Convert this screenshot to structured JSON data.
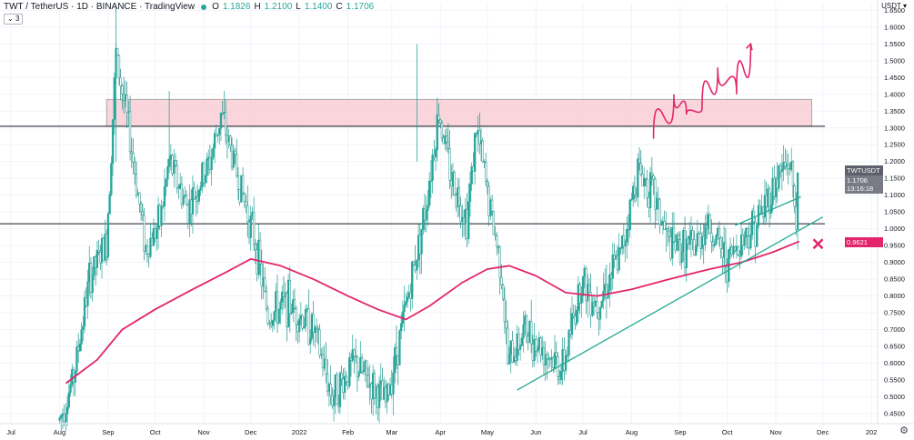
{
  "header": {
    "title": "TWT / TetherUS · 1D · BINANCE · TradingView",
    "o_label": "O",
    "o": "1.1826",
    "h_label": "H",
    "h": "1.2100",
    "l_label": "L",
    "l": "1.1400",
    "c_label": "C",
    "c": "1.1706",
    "indicator_count": "3",
    "currency": "USDT ▾"
  },
  "price_tags": {
    "symbol": "TWTUSDT",
    "last": "1.1706",
    "countdown": "13:16:18",
    "ma_value": "0.9621"
  },
  "colors": {
    "up": "#26a69a",
    "ma": "#e3256b",
    "trendline": "#22ab94",
    "zone_fill": "#f8c8d0",
    "arrow": "#e3256b",
    "hline": "#131722"
  },
  "chart_data": {
    "type": "candlestick",
    "symbol": "TWTUSDT",
    "interval": "1D",
    "exchange": "BINANCE",
    "y_ticks": [
      "1.6500",
      "1.6000",
      "1.5500",
      "1.5000",
      "1.4500",
      "1.4000",
      "1.3500",
      "1.3000",
      "1.2500",
      "1.2000",
      "1.1500",
      "1.1000",
      "1.0500",
      "1.0000",
      "0.9500",
      "0.9000",
      "0.8500",
      "0.8000",
      "0.7500",
      "0.7000",
      "0.6500",
      "0.6000",
      "0.5500",
      "0.5000",
      "0.4500"
    ],
    "ylim": [
      0.42,
      1.67
    ],
    "x_ticks": [
      "Jul",
      "Aug",
      "Sep",
      "Oct",
      "Nov",
      "Dec",
      "2022",
      "Feb",
      "Mar",
      "Apr",
      "May",
      "Jun",
      "Jul",
      "Aug",
      "Sep",
      "Oct",
      "Nov",
      "Dec",
      "202"
    ],
    "xlim": [
      "2021-06-24",
      "2023-01-05"
    ],
    "close_path": [
      {
        "date": "2021-08-01",
        "close": 0.43
      },
      {
        "date": "2021-08-10",
        "close": 0.56
      },
      {
        "date": "2021-08-20",
        "close": 0.85
      },
      {
        "date": "2021-08-31",
        "close": 0.96
      },
      {
        "date": "2021-09-06",
        "close": 1.52
      },
      {
        "date": "2021-09-15",
        "close": 1.27
      },
      {
        "date": "2021-09-25",
        "close": 0.94
      },
      {
        "date": "2021-10-04",
        "close": 1.02
      },
      {
        "date": "2021-10-10",
        "close": 1.2
      },
      {
        "date": "2021-10-22",
        "close": 1.06
      },
      {
        "date": "2021-11-05",
        "close": 1.2
      },
      {
        "date": "2021-11-12",
        "close": 1.34
      },
      {
        "date": "2021-11-26",
        "close": 1.1
      },
      {
        "date": "2021-12-04",
        "close": 0.96
      },
      {
        "date": "2021-12-12",
        "close": 0.74
      },
      {
        "date": "2021-12-25",
        "close": 0.78
      },
      {
        "date": "2022-01-10",
        "close": 0.7
      },
      {
        "date": "2022-01-22",
        "close": 0.5
      },
      {
        "date": "2022-02-05",
        "close": 0.6
      },
      {
        "date": "2022-02-25",
        "close": 0.48
      },
      {
        "date": "2022-03-08",
        "close": 0.72
      },
      {
        "date": "2022-03-22",
        "close": 1.05
      },
      {
        "date": "2022-03-31",
        "close": 1.35
      },
      {
        "date": "2022-04-08",
        "close": 1.15
      },
      {
        "date": "2022-04-18",
        "close": 1.03
      },
      {
        "date": "2022-04-24",
        "close": 1.3
      },
      {
        "date": "2022-05-03",
        "close": 1.05
      },
      {
        "date": "2022-05-10",
        "close": 0.88
      },
      {
        "date": "2022-05-14",
        "close": 0.6
      },
      {
        "date": "2022-05-25",
        "close": 0.7
      },
      {
        "date": "2022-06-10",
        "close": 0.62
      },
      {
        "date": "2022-06-18",
        "close": 0.58
      },
      {
        "date": "2022-06-30",
        "close": 0.85
      },
      {
        "date": "2022-07-10",
        "close": 0.78
      },
      {
        "date": "2022-07-25",
        "close": 0.92
      },
      {
        "date": "2022-08-05",
        "close": 1.18
      },
      {
        "date": "2022-08-15",
        "close": 1.1
      },
      {
        "date": "2022-08-25",
        "close": 0.95
      },
      {
        "date": "2022-09-10",
        "close": 0.94
      },
      {
        "date": "2022-09-18",
        "close": 1.02
      },
      {
        "date": "2022-10-01",
        "close": 0.9
      },
      {
        "date": "2022-10-10",
        "close": 0.97
      },
      {
        "date": "2022-10-20",
        "close": 1.02
      },
      {
        "date": "2022-10-28",
        "close": 1.1
      },
      {
        "date": "2022-11-03",
        "close": 1.16
      },
      {
        "date": "2022-11-10",
        "close": 1.2
      },
      {
        "date": "2022-11-14",
        "close": 1.04
      },
      {
        "date": "2022-11-16",
        "close": 1.1706
      }
    ],
    "ma_series": {
      "points": [
        {
          "date": "2021-08-05",
          "value": 0.54
        },
        {
          "date": "2021-08-25",
          "value": 0.61
        },
        {
          "date": "2021-09-10",
          "value": 0.7
        },
        {
          "date": "2021-10-01",
          "value": 0.76
        },
        {
          "date": "2021-10-25",
          "value": 0.82
        },
        {
          "date": "2021-11-15",
          "value": 0.87
        },
        {
          "date": "2021-12-01",
          "value": 0.91
        },
        {
          "date": "2021-12-20",
          "value": 0.89
        },
        {
          "date": "2022-01-10",
          "value": 0.85
        },
        {
          "date": "2022-02-01",
          "value": 0.8
        },
        {
          "date": "2022-02-20",
          "value": 0.76
        },
        {
          "date": "2022-03-10",
          "value": 0.73
        },
        {
          "date": "2022-03-25",
          "value": 0.77
        },
        {
          "date": "2022-04-15",
          "value": 0.84
        },
        {
          "date": "2022-05-01",
          "value": 0.88
        },
        {
          "date": "2022-05-15",
          "value": 0.89
        },
        {
          "date": "2022-06-01",
          "value": 0.86
        },
        {
          "date": "2022-06-20",
          "value": 0.81
        },
        {
          "date": "2022-07-10",
          "value": 0.8
        },
        {
          "date": "2022-08-01",
          "value": 0.82
        },
        {
          "date": "2022-08-25",
          "value": 0.85
        },
        {
          "date": "2022-09-20",
          "value": 0.88
        },
        {
          "date": "2022-10-10",
          "value": 0.9
        },
        {
          "date": "2022-10-30",
          "value": 0.93
        },
        {
          "date": "2022-11-16",
          "value": 0.9621
        }
      ]
    },
    "annotations": {
      "horizontal_lines": [
        1.305,
        1.015
      ],
      "resistance_zone": {
        "from_date": "2021-08-31",
        "to_date": "2022-11-24",
        "low": 1.305,
        "high": 1.385
      },
      "trendline_lower": [
        {
          "date": "2022-05-20",
          "value": 0.52
        },
        {
          "date": "2022-12-01",
          "value": 1.035
        }
      ],
      "trendline_upper": [
        {
          "date": "2022-10-06",
          "value": 1.01
        },
        {
          "date": "2022-11-17",
          "value": 1.095
        }
      ],
      "projection_path": [
        {
          "date": "2022-08-15",
          "value": 1.27
        },
        {
          "date": "2022-08-28",
          "value": 1.4
        },
        {
          "date": "2022-09-05",
          "value": 1.34
        },
        {
          "date": "2022-09-15",
          "value": 1.36
        },
        {
          "date": "2022-09-25",
          "value": 1.48
        },
        {
          "date": "2022-10-07",
          "value": 1.4
        },
        {
          "date": "2022-10-16",
          "value": 1.55
        }
      ],
      "cross_mark": {
        "date": "2022-11-28",
        "value": 0.955
      }
    }
  }
}
